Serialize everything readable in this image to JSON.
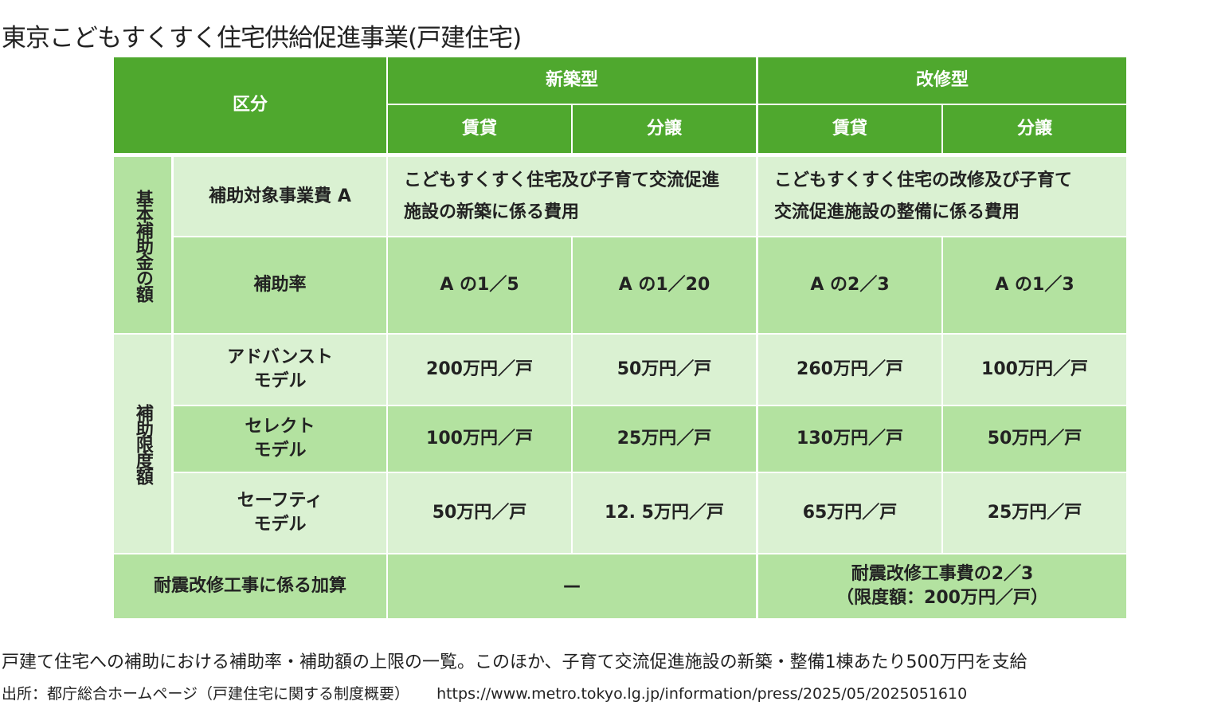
{
  "title": "東京こどもすくすく住宅供給促進事業(戸建住宅)",
  "table": {
    "header": {
      "category": "区分",
      "new_build": "新築型",
      "renovation": "改修型",
      "rental": "賃貸",
      "sale": "分譲"
    },
    "basic_group": "基本補助金の額",
    "limit_group": "補助限度額",
    "target_cost": {
      "label": "補助対象事業費 A",
      "new_build": "こどもすくすく住宅及び子育て交流促進\n施設の新築に係る費用",
      "renovation": "こどもすくすく住宅の改修及び子育て\n交流促進施設の整備に係る費用"
    },
    "rate": {
      "label": "補助率",
      "values": [
        "A の1／5",
        "A の1／20",
        "A の2／3",
        "A の1／3"
      ]
    },
    "rows": [
      {
        "label": "アドバンスト\nモデル",
        "values": [
          "200万円／戸",
          "50万円／戸",
          "260万円／戸",
          "100万円／戸"
        ]
      },
      {
        "label": "セレクト\nモデル",
        "values": [
          "100万円／戸",
          "25万円／戸",
          "130万円／戸",
          "50万円／戸"
        ]
      },
      {
        "label": "セーフティ\nモデル",
        "values": [
          "50万円／戸",
          "12. 5万円／戸",
          "65万円／戸",
          "25万円／戸"
        ]
      }
    ],
    "seismic": {
      "label": "耐震改修工事に係る加算",
      "new_build": "—",
      "renovation": "耐震改修工事費の2／3\n（限度額：200万円／戸）"
    }
  },
  "caption": "戸建て住宅への補助における補助率・補助額の上限の一覧。このほか、子育て交流促進施設の新築・整備1棟あたり500万円を支給",
  "source": {
    "label": "出所：都庁総合ホームページ（戸建住宅に関する制度概要）",
    "url": "https://www.metro.tokyo.lg.jp/information/press/2025/05/2025051610"
  },
  "colors": {
    "header": "#4fa82e",
    "dark": "#b3e2a0",
    "light": "#daf1d2"
  }
}
